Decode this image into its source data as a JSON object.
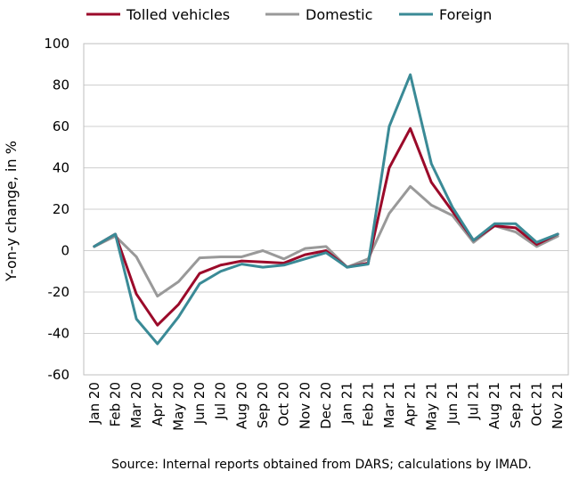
{
  "chart_data": {
    "type": "line",
    "title": "",
    "xlabel": "",
    "ylabel": "Y-on-y change, in %",
    "ylim": [
      -60,
      100
    ],
    "yticks": [
      -60,
      -40,
      -20,
      0,
      20,
      40,
      60,
      80,
      100
    ],
    "grid": true,
    "legend_position": "top",
    "categories": [
      "Jan 20",
      "Feb 20",
      "Mar 20",
      "Apr 20",
      "May 20",
      "Jun 20",
      "Jul 20",
      "Aug 20",
      "Sep 20",
      "Oct 20",
      "Nov 20",
      "Dec 20",
      "Jan 21",
      "Feb 21",
      "Mar 21",
      "Apr 21",
      "May 21",
      "Jun 21",
      "Jul 21",
      "Aug 21",
      "Sep 21",
      "Oct 21",
      "Nov 21"
    ],
    "series": [
      {
        "name": "Tolled vehicles",
        "color": "#9b0a2a",
        "values": [
          2,
          8,
          -21,
          -36,
          -26,
          -11,
          -7,
          -5,
          -5.5,
          -6,
          -2,
          0,
          -8,
          -6,
          40,
          59,
          33,
          19,
          5,
          12,
          11,
          3,
          8
        ]
      },
      {
        "name": "Domestic",
        "color": "#999999",
        "values": [
          2,
          7,
          -3,
          -22,
          -15,
          -3.5,
          -3,
          -3,
          0,
          -4,
          1,
          2,
          -8,
          -4,
          18,
          31,
          22,
          17,
          4,
          12,
          9,
          2,
          7
        ]
      },
      {
        "name": "Foreign",
        "color": "#3a8a96",
        "values": [
          2,
          8,
          -33,
          -45,
          -32,
          -16,
          -10,
          -6.5,
          -8,
          -7,
          -4,
          -1,
          -8,
          -6.5,
          60,
          85,
          42,
          21,
          5,
          13,
          13,
          4,
          8
        ]
      }
    ],
    "source": "Source: Internal reports obtained from DARS; calculations by IMAD."
  }
}
